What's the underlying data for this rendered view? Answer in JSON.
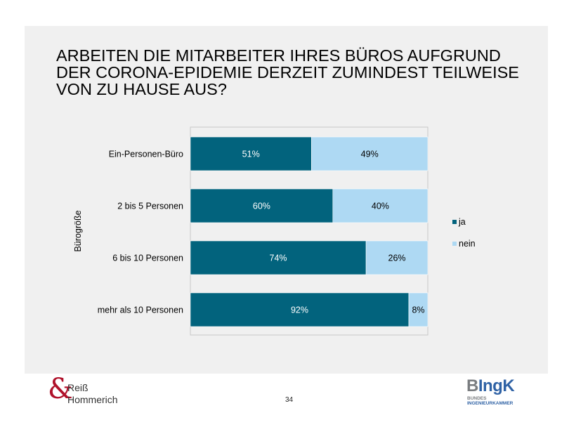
{
  "slide": {
    "title_lines": [
      "ARBEITEN DIE MITARBEITER IHRES BÜROS AUFGRUND",
      "DER CORONA-EPIDEMIE DERZEIT ZUMINDEST TEILWEISE",
      "VON ZU HAUSE AUS?"
    ],
    "page_number": "34"
  },
  "logos": {
    "left": {
      "symbol": "&",
      "line1": "Reiß",
      "line2": "Hommerich"
    },
    "right": {
      "big_first": "B",
      "big_rest": "IngK",
      "line1": "BUNDES",
      "line2": "INGENIEURKAMMER"
    }
  },
  "chart_data": {
    "type": "bar",
    "orientation": "horizontal",
    "stacked": "100%",
    "title": "ARBEITEN DIE MITARBEITER IHRES BÜROS AUFGRUND DER CORONA-EPIDEMIE DERZEIT ZUMINDEST TEILWEISE VON ZU HAUSE AUS?",
    "ylabel": "Bürogröße",
    "xlabel": "",
    "categories": [
      "Ein-Personen-Büro",
      "2 bis 5 Personen",
      "6 bis 10 Personen",
      "mehr als 10 Personen"
    ],
    "series": [
      {
        "name": "ja",
        "color": "#02637d",
        "label_color": "#ffffff",
        "values": [
          51,
          60,
          74,
          92
        ],
        "labels": [
          "51%",
          "60%",
          "74%",
          "92%"
        ]
      },
      {
        "name": "nein",
        "color": "#aed9f3",
        "label_color": "#000000",
        "values": [
          49,
          40,
          26,
          8
        ],
        "labels": [
          "49%",
          "40%",
          "26%",
          "8%"
        ]
      }
    ],
    "xlim": [
      0,
      100
    ],
    "grid": false,
    "legend": "right"
  }
}
